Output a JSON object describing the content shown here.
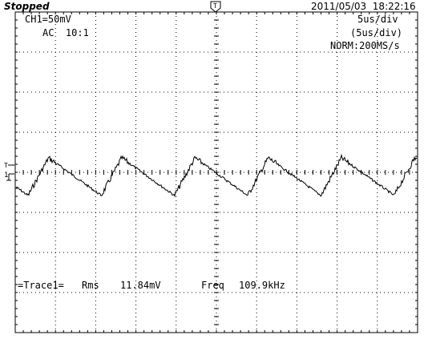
{
  "header": {
    "status": "Stopped",
    "datetime": "2011/05/03  18:22:16"
  },
  "channel": {
    "scale": "CH1=50mV",
    "coupling": "AC  10:1",
    "color": "#000000"
  },
  "timebase": {
    "per_div": "5us/div",
    "per_div_sub": "(5us/div)",
    "acquisition": "NORM:200MS/s"
  },
  "measurement": {
    "label": "=Trace1=",
    "rms_label": "Rms",
    "rms_value": "11.84mV",
    "freq_label": "Freq",
    "freq_value": "109.9kHz"
  },
  "markers": {
    "trigger_top": "T",
    "trigger_level": "T",
    "channel_ground": "1"
  },
  "waveform": {
    "type": "sawtooth",
    "period_us": 9.1,
    "peak_mV": 20,
    "trough_mV": -27
  },
  "icons": [
    "trigger-position-marker",
    "trigger-level-marker",
    "channel-ground-marker"
  ]
}
